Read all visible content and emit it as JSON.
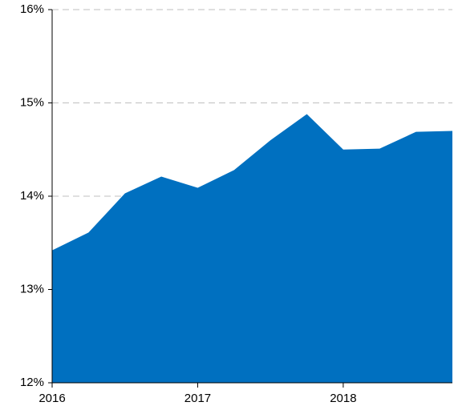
{
  "chart_data": {
    "type": "area",
    "x": [
      2016,
      2016.25,
      2016.5,
      2016.75,
      2017,
      2017.25,
      2017.5,
      2017.75,
      2018,
      2018.25,
      2018.5,
      2018.75
    ],
    "values": [
      13.42,
      13.61,
      14.03,
      14.21,
      14.09,
      14.28,
      14.6,
      14.88,
      14.5,
      14.51,
      14.69,
      14.7
    ],
    "color": "#0070c0",
    "xlim": [
      2016,
      2018.75
    ],
    "xticks": [
      2016,
      2017,
      2018
    ],
    "ylim": [
      12,
      16
    ],
    "yticks": [
      {
        "value": 12,
        "label": "12%"
      },
      {
        "value": 13,
        "label": "13%"
      },
      {
        "value": 14,
        "label": "14%"
      },
      {
        "value": 15,
        "label": "15%"
      },
      {
        "value": 16,
        "label": "16%"
      }
    ],
    "grid": true
  }
}
